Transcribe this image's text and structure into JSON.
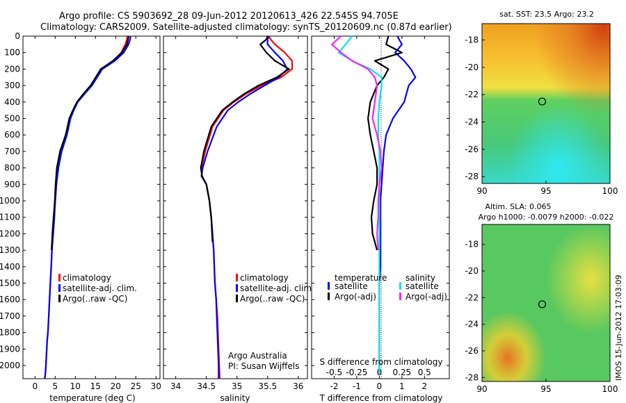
{
  "title": {
    "line1": "Argo profile: CS 5903692_28 09-Jun-2012 20120613_426 22.545S 94.705E",
    "line2": "Climatology: CARS2009. Satellite-adjusted climatology: synTS_20120609.nc (0.87d earlier)"
  },
  "side_text": {
    "stamp": "IMOS 15-Jun-2012 17:03:09",
    "credit1": "Argo Australia",
    "credit2": "PI: Susan Wijffels"
  },
  "colors": {
    "climatology": "#ff0000",
    "satellite": "#0000ff",
    "argo": "#000000",
    "satellite_salinity": "#00e5ee",
    "argo_salinity": "#ff20ff",
    "zero_line": "#000000"
  },
  "chart_data": [
    {
      "id": "temperature",
      "type": "line",
      "xlabel": "temperature (deg C)",
      "ylabel": "",
      "xlim": [
        -3,
        31
      ],
      "ylim": [
        2080,
        0
      ],
      "y_reversed": true,
      "xticks": [
        0,
        5,
        10,
        15,
        20,
        25,
        30
      ],
      "yticks": [
        0,
        100,
        200,
        300,
        400,
        500,
        600,
        700,
        800,
        900,
        1000,
        1100,
        1200,
        1300,
        1400,
        1500,
        1600,
        1700,
        1800,
        1900,
        2000
      ],
      "legend": [
        "climatology",
        "satellite-adj. clim.",
        "Argo(..raw -QC)"
      ],
      "legend_position": "lower-center",
      "series": [
        {
          "name": "climatology",
          "color": "#ff0000",
          "x": [
            22.9,
            22.8,
            22.4,
            21.4,
            19.5,
            16.5,
            14.0,
            12.2,
            10.5,
            9.5,
            8.7,
            7.8,
            6.5,
            5.7,
            5.3,
            5.0,
            4.7,
            4.5,
            4.2,
            4.0,
            3.8,
            3.6,
            3.4,
            3.2,
            3.0,
            2.9,
            2.8,
            2.7,
            2.6,
            2.5,
            2.4
          ],
          "y": [
            0,
            20,
            50,
            100,
            150,
            200,
            300,
            350,
            400,
            450,
            500,
            600,
            700,
            800,
            900,
            1000,
            1100,
            1200,
            1300,
            1400,
            1500,
            1600,
            1700,
            1800,
            1850,
            1900,
            1950,
            2000,
            2040,
            2060,
            2080
          ]
        },
        {
          "name": "satellite-adj. clim.",
          "color": "#0000ff",
          "x": [
            23.7,
            23.6,
            23.2,
            22.0,
            19.8,
            16.7,
            14.1,
            12.3,
            10.6,
            9.6,
            8.8,
            7.9,
            6.6,
            5.8,
            5.3,
            5.0,
            4.8,
            4.5,
            4.2,
            4.0,
            3.8,
            3.6,
            3.4,
            3.2,
            3.0,
            2.9,
            2.8,
            2.7,
            2.6,
            2.5,
            2.4
          ],
          "y": [
            0,
            20,
            50,
            100,
            150,
            200,
            300,
            350,
            400,
            450,
            500,
            600,
            700,
            800,
            900,
            1000,
            1100,
            1200,
            1300,
            1400,
            1500,
            1600,
            1700,
            1800,
            1850,
            1900,
            1950,
            2000,
            2040,
            2060,
            2080
          ]
        },
        {
          "name": "Argo(..raw -QC)",
          "color": "#000000",
          "x": [
            23.2,
            23.1,
            22.8,
            21.5,
            19.3,
            16.3,
            13.8,
            12.0,
            10.4,
            9.4,
            8.5,
            7.6,
            6.2,
            5.4,
            5.1,
            4.9,
            4.6,
            4.3,
            4.1
          ],
          "y": [
            0,
            20,
            50,
            100,
            150,
            200,
            300,
            350,
            400,
            450,
            500,
            600,
            700,
            800,
            900,
            1000,
            1100,
            1200,
            1300
          ]
        }
      ]
    },
    {
      "id": "salinity",
      "type": "line",
      "xlabel": "salinity",
      "ylabel": "",
      "xlim": [
        33.8,
        36.15
      ],
      "ylim": [
        2080,
        0
      ],
      "y_reversed": true,
      "xticks": [
        34,
        34.5,
        35,
        35.5,
        36
      ],
      "legend": [
        "climatology",
        "satellite-adj. clim.",
        "Argo(..raw -QC)"
      ],
      "legend_position": "lower-center",
      "series": [
        {
          "name": "climatology",
          "color": "#ff0000",
          "x": [
            35.52,
            35.55,
            35.62,
            35.78,
            35.9,
            35.9,
            35.72,
            35.4,
            35.15,
            34.95,
            34.78,
            34.6,
            34.48,
            34.42,
            34.43,
            34.5,
            34.55,
            34.58,
            34.6,
            34.62,
            34.63,
            34.64,
            34.66,
            34.68,
            34.69,
            34.7,
            34.71,
            34.72
          ],
          "y": [
            0,
            20,
            50,
            100,
            150,
            200,
            250,
            300,
            350,
            400,
            450,
            550,
            700,
            800,
            850,
            900,
            1000,
            1100,
            1200,
            1300,
            1400,
            1500,
            1600,
            1700,
            1800,
            1900,
            2000,
            2080
          ]
        },
        {
          "name": "satellite-adj. clim.",
          "color": "#0000ff",
          "x": [
            35.52,
            35.5,
            35.5,
            35.62,
            35.75,
            35.82,
            35.68,
            35.45,
            35.22,
            35.02,
            34.85,
            34.67,
            34.52,
            34.44,
            34.42,
            34.5,
            34.55,
            34.58,
            34.6,
            34.62,
            34.63,
            34.64,
            34.66,
            34.67,
            34.68,
            34.69,
            34.7,
            34.7
          ],
          "y": [
            0,
            20,
            50,
            100,
            150,
            200,
            250,
            300,
            350,
            400,
            450,
            550,
            700,
            800,
            850,
            900,
            1000,
            1100,
            1200,
            1300,
            1400,
            1500,
            1600,
            1700,
            1800,
            1900,
            2000,
            2080
          ]
        },
        {
          "name": "Argo(..raw -QC)",
          "color": "#000000",
          "x": [
            35.5,
            35.48,
            35.38,
            35.48,
            35.62,
            35.85,
            35.65,
            35.35,
            35.12,
            34.93,
            34.76,
            34.58,
            34.46,
            34.41,
            34.43,
            34.5,
            34.55,
            34.58,
            34.6
          ],
          "y": [
            0,
            20,
            50,
            100,
            150,
            200,
            250,
            300,
            350,
            400,
            450,
            550,
            700,
            800,
            850,
            900,
            1000,
            1100,
            1250
          ]
        }
      ],
      "annotations": [
        "Argo Australia",
        "PI: Susan Wijffels"
      ]
    },
    {
      "id": "difference",
      "type": "line",
      "xlabel": "T difference from climatology",
      "xlabel2": "S difference from climatology",
      "ylabel": "",
      "xlim": [
        -3,
        3.1
      ],
      "ylim": [
        2080,
        0
      ],
      "y_reversed": true,
      "xticks": [
        -2,
        -1,
        0,
        1,
        2
      ],
      "xticks_top": [
        "-0.5",
        "-0.25",
        "0",
        "0.25",
        "0.5"
      ],
      "legend_temperature_heading": "temperature",
      "legend_salinity_heading": "salinity",
      "legend": [
        "satellite",
        "Argo(-adj)",
        "satellite",
        "Argo(-adj)"
      ],
      "legend_position": "lower-center",
      "series": [
        {
          "name": "satellite",
          "group": "temperature",
          "color": "#0000ff",
          "x": [
            0.8,
            1.0,
            0.7,
            1.1,
            1.4,
            1.6,
            1.3,
            1.1,
            0.6,
            0.3,
            0.2,
            0.15,
            0.1,
            0.05,
            0.05,
            0.05,
            0.05,
            0.05,
            0.0,
            0.0,
            0.0,
            0.0,
            0.0,
            0.0
          ],
          "y": [
            0,
            50,
            100,
            150,
            200,
            250,
            300,
            400,
            500,
            600,
            700,
            800,
            900,
            1000,
            1100,
            1200,
            1300,
            1400,
            1500,
            1600,
            1700,
            1800,
            1900,
            2050
          ]
        },
        {
          "name": "Argo(-adj)",
          "group": "temperature",
          "color": "#000000",
          "x": [
            0.4,
            0.3,
            1.0,
            -0.2,
            0.4,
            0.2,
            -0.1,
            -0.4,
            -0.5,
            -0.4,
            -0.25,
            -0.1,
            -0.1,
            -0.25,
            -0.35,
            -0.3,
            -0.1
          ],
          "y": [
            0,
            50,
            100,
            150,
            200,
            250,
            300,
            400,
            500,
            600,
            700,
            800,
            900,
            1000,
            1100,
            1200,
            1300
          ]
        },
        {
          "name": "satellite",
          "group": "salinity",
          "color": "#00e5ee",
          "x": [
            -1.2,
            -1.5,
            -1.8,
            -1.2,
            -0.4,
            0.1,
            0.1,
            0.0,
            -0.05,
            -0.05,
            0.0,
            0.0,
            0.0,
            0.0,
            0.0,
            0.0,
            0.0,
            0.0,
            0.0,
            0.0,
            0.0,
            0.0,
            0.0
          ],
          "y": [
            0,
            50,
            100,
            150,
            200,
            250,
            300,
            400,
            500,
            600,
            700,
            800,
            900,
            1000,
            1100,
            1200,
            1300,
            1400,
            1500,
            1600,
            1700,
            1800,
            2050
          ]
        },
        {
          "name": "Argo(-adj)",
          "group": "salinity",
          "color": "#ff20ff",
          "x": [
            -1.7,
            -2.1,
            -1.7,
            -1.2,
            -0.5,
            -0.2,
            -0.1,
            -0.2,
            -0.3,
            -0.1,
            0.05,
            0.1,
            0.0,
            -0.05,
            -0.05,
            -0.1,
            -0.05
          ],
          "y": [
            0,
            50,
            100,
            150,
            200,
            250,
            300,
            400,
            500,
            600,
            700,
            800,
            900,
            1000,
            1100,
            1200,
            1300
          ]
        }
      ]
    },
    {
      "id": "sst-map",
      "type": "heatmap",
      "title": "sat. SST: 23.5  Argo: 23.2",
      "xlim": [
        90,
        100
      ],
      "ylim": [
        -28.5,
        -16.8
      ],
      "xticks": [
        90,
        95,
        100
      ],
      "yticks": [
        -18,
        -20,
        -22,
        -24,
        -26,
        -28
      ],
      "marker": {
        "lon": 94.7,
        "lat": -22.5
      }
    },
    {
      "id": "sla-map",
      "type": "heatmap",
      "title": "Altim. SLA: 0.065",
      "subtitle": "Argo h1000: -0.0079 h2000: -0.022",
      "xlim": [
        90,
        100
      ],
      "ylim": [
        -28.3,
        -16.5
      ],
      "xticks": [
        90,
        95,
        100
      ],
      "yticks": [
        -18,
        -20,
        -22,
        -24,
        -26,
        -28
      ],
      "marker": {
        "lon": 94.7,
        "lat": -22.5
      }
    }
  ]
}
